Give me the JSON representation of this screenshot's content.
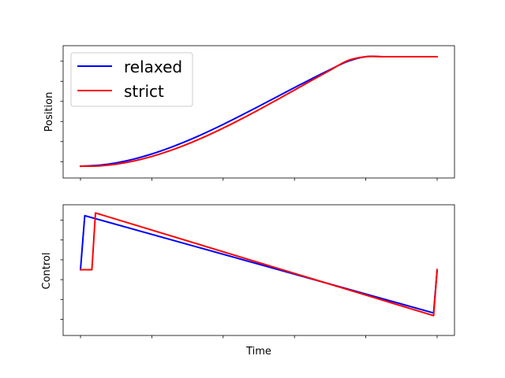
{
  "chart_data": [
    {
      "type": "line",
      "panel": "top",
      "ylabel": "Position",
      "xlabel": "",
      "xlim": [
        0,
        1
      ],
      "ylim": [
        -0.05,
        1.05
      ],
      "x_tick_labels_shown": false,
      "y_tick_labels_shown": false,
      "legend": {
        "placement": "top-left",
        "entries": [
          "relaxed",
          "strict"
        ]
      },
      "x": [
        0.0,
        0.05,
        0.1,
        0.15,
        0.2,
        0.25,
        0.3,
        0.35,
        0.4,
        0.45,
        0.5,
        0.55,
        0.6,
        0.65,
        0.7,
        0.75,
        0.8,
        0.85,
        0.9,
        0.95,
        1.0
      ],
      "series": [
        {
          "name": "relaxed",
          "color": "#0000ff",
          "values": [
            0.0,
            0.0082,
            0.0305,
            0.0655,
            0.1118,
            0.168,
            0.2326,
            0.3042,
            0.3814,
            0.4628,
            0.5469,
            0.6323,
            0.7176,
            0.8013,
            0.8819,
            0.9581,
            1.0,
            1.0,
            1.0,
            1.0,
            1.0
          ]
        },
        {
          "name": "strict",
          "color": "#ff0000",
          "values": [
            0.0,
            0.0024,
            0.0185,
            0.0478,
            0.089,
            0.1408,
            0.2021,
            0.2714,
            0.3476,
            0.4294,
            0.5154,
            0.6045,
            0.6953,
            0.7864,
            0.8767,
            0.9649,
            1.0,
            1.0,
            1.0,
            1.0,
            1.0
          ]
        }
      ]
    },
    {
      "type": "line",
      "panel": "bottom",
      "ylabel": "Control",
      "xlabel": "Time",
      "xlim": [
        0,
        1
      ],
      "ylim": [
        -1.1,
        1.1
      ],
      "x_tick_labels_shown": false,
      "y_tick_labels_shown": false,
      "x": [],
      "series": [
        {
          "name": "relaxed",
          "color": "#0000ff",
          "points": [
            [
              0.0,
              0.0
            ],
            [
              0.012,
              1.0
            ],
            [
              0.99,
              -0.8
            ],
            [
              1.0,
              0.0
            ]
          ]
        },
        {
          "name": "strict",
          "color": "#ff0000",
          "points": [
            [
              0.0,
              0.0
            ],
            [
              0.032,
              0.0
            ],
            [
              0.042,
              1.05
            ],
            [
              0.99,
              -0.85
            ],
            [
              1.0,
              0.0
            ]
          ]
        }
      ]
    }
  ]
}
